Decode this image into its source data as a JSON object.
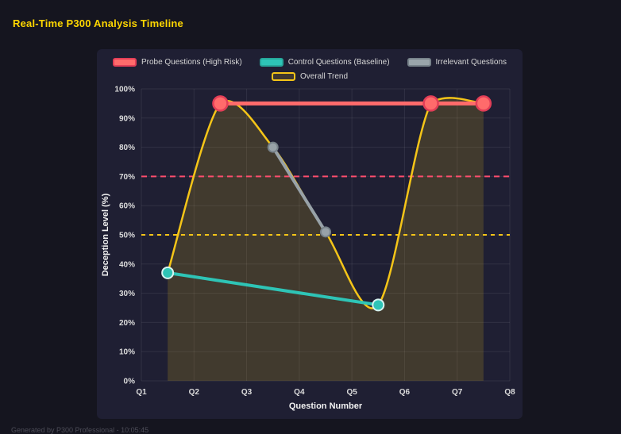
{
  "page": {
    "title": "Real-Time P300 Analysis Timeline",
    "footer": "Generated by P300 Professional - 10:05:45"
  },
  "colors": {
    "page_bg": "#15151f",
    "panel_bg": "#1f1f33",
    "title_text": "#ffd700",
    "grid_line": "rgba(255,255,255,0.08)",
    "tick_text": "#dcdcdc",
    "axis_title_text": "#f2f2f2",
    "legend_text": "#d6d6d6",
    "footer_text": "#4d4d58"
  },
  "chart_data": {
    "type": "line",
    "title": "Real-Time P300 Analysis Timeline",
    "xlabel": "Question Number",
    "ylabel": "Deception Level (%)",
    "x_ticks": [
      "Q1",
      "Q2",
      "Q3",
      "Q4",
      "Q5",
      "Q6",
      "Q7",
      "Q8"
    ],
    "x_tick_values": [
      1,
      2,
      3,
      4,
      5,
      6,
      7,
      8
    ],
    "xlim": [
      1,
      8
    ],
    "y_ticks": [
      "0%",
      "10%",
      "20%",
      "30%",
      "40%",
      "50%",
      "60%",
      "70%",
      "80%",
      "90%",
      "100%"
    ],
    "y_tick_values": [
      0,
      10,
      20,
      30,
      40,
      50,
      60,
      70,
      80,
      90,
      100
    ],
    "ylim": [
      0,
      100
    ],
    "grid": true,
    "legend_position": "top",
    "series": [
      {
        "name": "Probe Questions (High Risk)",
        "style": "straight",
        "color": "#ff6b6b",
        "point_border": "#e23e57",
        "line_width": 5,
        "point_radius": 9,
        "point_border_width": 2.5,
        "points": [
          [
            2.5,
            95
          ],
          [
            6.5,
            95
          ],
          [
            7.5,
            95
          ]
        ],
        "swatch_fill": "#ff6b6b",
        "swatch_border": "#e23e57"
      },
      {
        "name": "Control Questions (Baseline)",
        "style": "straight",
        "color": "#2ec4b6",
        "point_border": "#d7f3f0",
        "line_width": 4,
        "point_radius": 7,
        "point_border_width": 2,
        "points": [
          [
            1.5,
            37
          ],
          [
            5.5,
            26
          ]
        ],
        "swatch_fill": "#2ec4b6",
        "swatch_border": "#26a69a"
      },
      {
        "name": "Irrelevant Questions",
        "style": "straight",
        "color": "#98a2a8",
        "point_border": "#77828a",
        "line_width": 4,
        "point_radius": 6,
        "point_border_width": 2,
        "points": [
          [
            3.5,
            80
          ],
          [
            4.5,
            51
          ]
        ],
        "swatch_fill": "#9aa5ab",
        "swatch_border": "#77828a"
      },
      {
        "name": "Overall Trend",
        "style": "smooth",
        "color": "#f5c518",
        "line_width": 2.5,
        "point_radius": 0,
        "fill": "rgba(245,197,24,0.16)",
        "points": [
          [
            1.5,
            37
          ],
          [
            2.5,
            95
          ],
          [
            3.5,
            80
          ],
          [
            4.5,
            51
          ],
          [
            5.5,
            26
          ],
          [
            6.5,
            95
          ],
          [
            7.5,
            95
          ]
        ],
        "swatch_fill": "rgba(245,197,24,0.15)",
        "swatch_border": "#f5c518"
      }
    ],
    "thresholds": [
      {
        "value": 70,
        "color": "#ff4d6d",
        "dash": "7 5"
      },
      {
        "value": 50,
        "color": "#f5c518",
        "dash": "5 5"
      }
    ]
  }
}
